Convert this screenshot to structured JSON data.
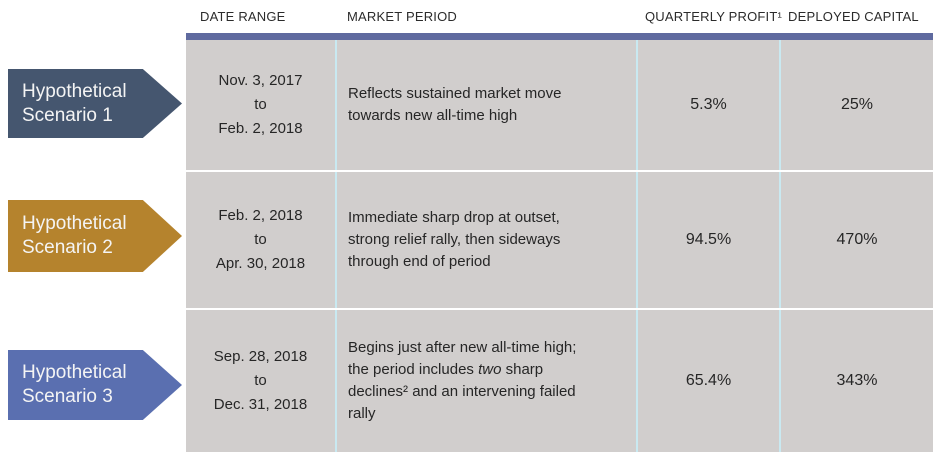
{
  "header": {
    "columns": [
      "DATE RANGE",
      "MARKET PERIOD",
      "QUARTERLY PROFIT¹",
      "DEPLOYED CAPITAL"
    ]
  },
  "colors": {
    "table_top_bar": "#5F6A9F",
    "table_body_bg": "#D1CECD",
    "column_divider": "#C9E9F1",
    "row_divider": "#FFFFFF",
    "scenario1_arrow": "#45566F",
    "scenario2_arrow": "#B5832D",
    "scenario3_arrow": "#5A6FB0"
  },
  "rows": [
    {
      "scenario": {
        "line1": "Hypothetical",
        "line2": "Scenario 1",
        "color": "#45566F"
      },
      "date_range": {
        "start": "Nov. 3, 2017",
        "connector": "to",
        "end": "Feb. 2, 2018"
      },
      "market_period": {
        "pre": "Reflects sustained market move towards new all-time high",
        "em": "",
        "post": ""
      },
      "quarterly_profit": "5.3%",
      "deployed_capital": "25%"
    },
    {
      "scenario": {
        "line1": "Hypothetical",
        "line2": "Scenario 2",
        "color": "#B5832D"
      },
      "date_range": {
        "start": "Feb. 2, 2018",
        "connector": "to",
        "end": "Apr. 30, 2018"
      },
      "market_period": {
        "pre": "Immediate sharp drop at outset, strong relief rally, then sideways through end of period",
        "em": "",
        "post": ""
      },
      "quarterly_profit": "94.5%",
      "deployed_capital": "470%"
    },
    {
      "scenario": {
        "line1": "Hypothetical",
        "line2": "Scenario 3",
        "color": "#5A6FB0"
      },
      "date_range": {
        "start": "Sep. 28, 2018",
        "connector": "to",
        "end": "Dec. 31, 2018"
      },
      "market_period": {
        "pre": "Begins just after new all-time high; the period includes ",
        "em": "two",
        "post": " sharp declines² and an intervening failed rally"
      },
      "quarterly_profit": "65.4%",
      "deployed_capital": "343%"
    }
  ]
}
